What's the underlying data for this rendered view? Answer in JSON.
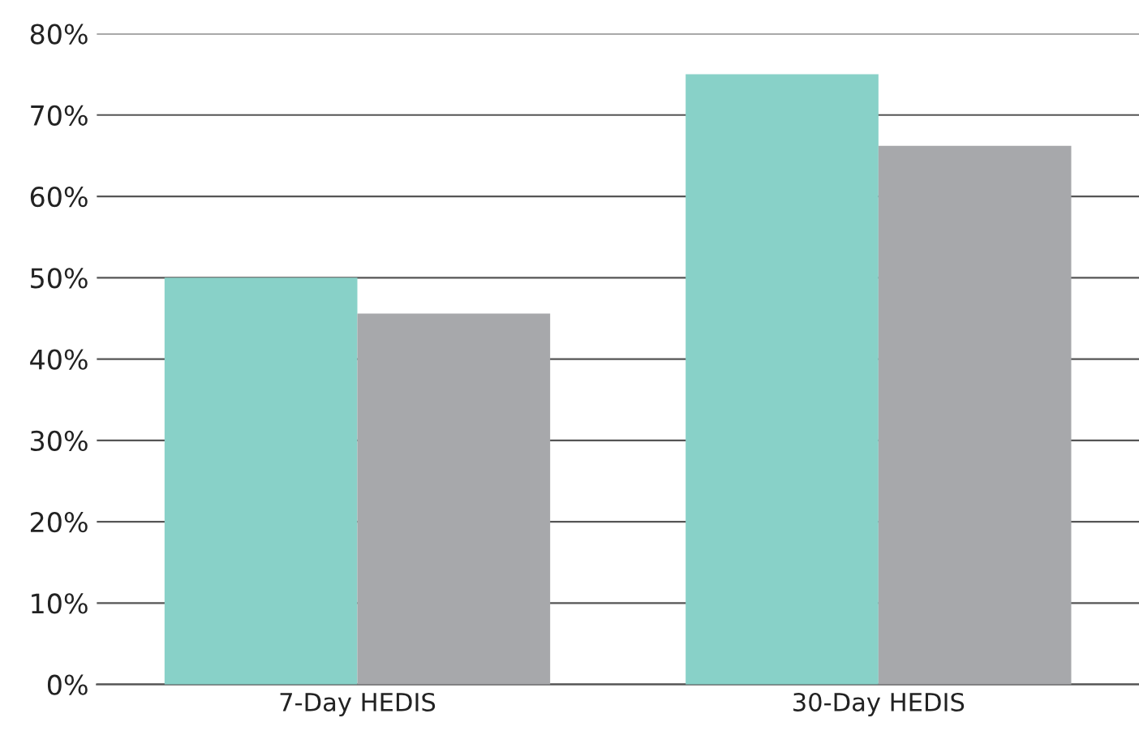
{
  "chart_data": {
    "type": "bar",
    "categories": [
      "7-Day HEDIS",
      "30-Day HEDIS"
    ],
    "series": [
      {
        "color": "#88d1c8",
        "values": [
          50,
          75
        ]
      },
      {
        "color": "#a7a8ab",
        "values": [
          45.6,
          66.2
        ]
      }
    ],
    "ylim": [
      0,
      80
    ],
    "yticks": [
      {
        "value": 0,
        "label": "0%"
      },
      {
        "value": 10,
        "label": "10%"
      },
      {
        "value": 20,
        "label": "20%"
      },
      {
        "value": 30,
        "label": "30%"
      },
      {
        "value": 40,
        "label": "40%"
      },
      {
        "value": 50,
        "label": "50%"
      },
      {
        "value": 60,
        "label": "60%"
      },
      {
        "value": 70,
        "label": "70%"
      },
      {
        "value": 80,
        "label": "80%"
      }
    ],
    "grid": "y"
  }
}
